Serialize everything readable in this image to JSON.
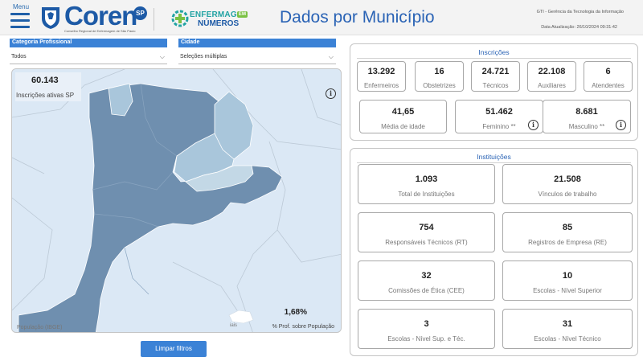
{
  "header": {
    "menu_label": "Menu",
    "logo_text": "Coren",
    "logo_badge": "SP",
    "logo_sub": "Conselho Regional de Enfermagem de São Paulo",
    "enf_line1": "ENFERMAG",
    "enf_em": "EM",
    "enf_line2": "NÚMEROS",
    "title": "Dados por Município",
    "gti": "GTI - Gerência da Tecnologia da Informação",
    "update": "Data Atualização: 26/10/2024 09:31:42"
  },
  "filters": {
    "categoria_label": "Categoria Profissional",
    "categoria_value": "Todos",
    "cidade_label": "Cidade",
    "cidade_value": "Seleções múltiplas"
  },
  "map": {
    "kpi_value": "60.143",
    "kpi_label": "Inscrições ativas SP",
    "pct_value": "1,68%",
    "pct_label": "% Prof. sobre População",
    "cut_left": "População (IBGE)",
    "cut_mid": "iais",
    "info_glyph": "i",
    "fill_color": "#6f8faf",
    "light_color": "#a9c6db"
  },
  "clear_button": "Limpar filtros",
  "inscricoes": {
    "title": "Inscrições",
    "row1": [
      {
        "value": "13.292",
        "label": "Enfermeiros"
      },
      {
        "value": "16",
        "label": "Obstetrizes"
      },
      {
        "value": "24.721",
        "label": "Técnicos"
      },
      {
        "value": "22.108",
        "label": "Auxiliares"
      },
      {
        "value": "6",
        "label": "Atendentes"
      }
    ],
    "row2": [
      {
        "value": "41,65",
        "label": "Média de idade"
      },
      {
        "value": "51.462",
        "label": "Feminino **"
      },
      {
        "value": "8.681",
        "label": "Masculino **"
      }
    ]
  },
  "instituicoes": {
    "title": "Instituições",
    "items": [
      {
        "value": "1.093",
        "label": "Total de Instituições"
      },
      {
        "value": "21.508",
        "label": "Vínculos de trabalho"
      },
      {
        "value": "754",
        "label": "Responsáveis Técnicos (RT)"
      },
      {
        "value": "85",
        "label": "Registros de Empresa (RE)"
      },
      {
        "value": "32",
        "label": "Comissões de Ética (CEE)"
      },
      {
        "value": "10",
        "label": "Escolas - Nível Superior"
      },
      {
        "value": "3",
        "label": "Escolas - Nível Sup. e Téc."
      },
      {
        "value": "31",
        "label": "Escolas - Nível Técnico"
      }
    ]
  }
}
